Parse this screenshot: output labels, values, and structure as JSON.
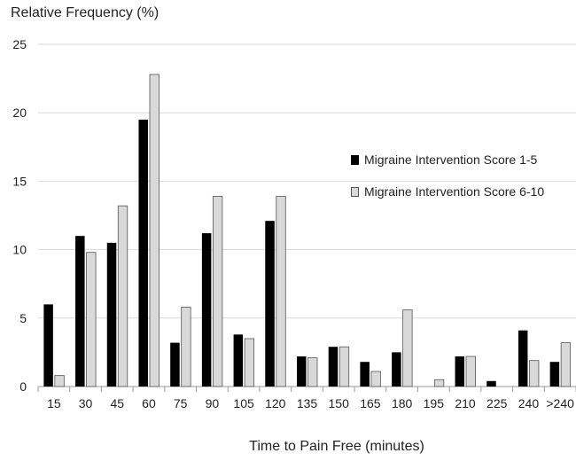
{
  "chart_data": {
    "type": "bar",
    "ylabel": "Relative Frequency (%)",
    "xlabel": "Time to Pain Free (minutes)",
    "categories": [
      "15",
      "30",
      "45",
      "60",
      "75",
      "90",
      "105",
      "120",
      "135",
      "150",
      "165",
      "180",
      "195",
      "210",
      "225",
      "240",
      ">240"
    ],
    "series": [
      {
        "name": "Migraine Intervention Score 1-5",
        "color": "#000000",
        "values": [
          6.0,
          11.0,
          10.5,
          19.5,
          3.2,
          11.2,
          3.8,
          12.1,
          2.2,
          2.9,
          1.8,
          2.5,
          0.0,
          2.2,
          0.4,
          4.1,
          1.8
        ]
      },
      {
        "name": "Migraine Intervention Score 6-10",
        "color": "#d9d9d9",
        "values": [
          0.8,
          9.8,
          13.2,
          22.8,
          5.8,
          13.9,
          3.5,
          13.9,
          2.1,
          2.9,
          1.1,
          5.6,
          0.5,
          2.2,
          0.0,
          1.9,
          3.2
        ]
      }
    ],
    "ylim": [
      0,
      25
    ],
    "yticks": [
      0,
      5,
      10,
      15,
      20,
      25
    ],
    "grid": true,
    "legend_position": "right"
  }
}
